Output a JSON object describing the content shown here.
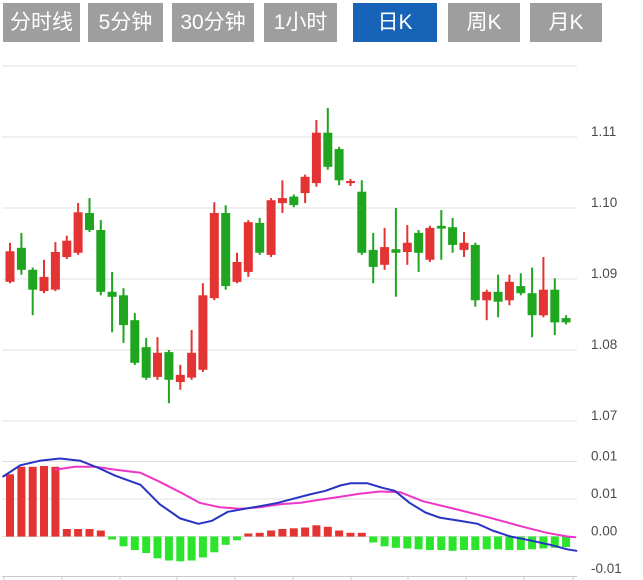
{
  "toolbar": {
    "tabs": [
      {
        "label": "分时线",
        "active": false
      },
      {
        "label": "5分钟",
        "active": false
      },
      {
        "label": "30分钟",
        "active": false
      },
      {
        "label": "1小时",
        "active": false
      },
      {
        "label": "日K",
        "active": true
      },
      {
        "label": "周K",
        "active": false
      },
      {
        "label": "月K",
        "active": false
      }
    ]
  },
  "colors": {
    "tab_inactive_bg": "#9e9e9e",
    "tab_active_bg": "#1763b8",
    "tab_text": "#ffffff",
    "up_candle": "#e43333",
    "down_candle": "#1fa51f",
    "hist_positive": "#e43333",
    "hist_negative": "#2be42b",
    "dif_line": "#2733c4",
    "dea_line": "#ee35c6",
    "gridline": "#e0e0e0",
    "axis_line": "#c8c8c8",
    "axis_text": "#4a4a4a",
    "background": "#ffffff"
  },
  "chart_data": {
    "type": "candlestick+macd",
    "convention": "red = close above open (up), green = close below open (down)",
    "price_panel": {
      "axis_tick_labels": [
        "1.11",
        "1.10",
        "1.09",
        "1.08",
        "1.07"
      ],
      "axis_tick_prices": [
        1.11,
        1.1,
        1.09,
        1.08,
        1.07
      ],
      "gridline_prices": [
        1.12,
        1.11,
        1.1,
        1.09,
        1.08,
        1.07
      ],
      "ylim": [
        1.068,
        1.125
      ],
      "grid": true,
      "legend": "none",
      "candles_ohlc": [
        [
          1.0896,
          1.0951,
          1.0894,
          1.0939
        ],
        [
          1.0944,
          1.0965,
          1.0906,
          1.0913
        ],
        [
          1.0913,
          1.0916,
          1.0849,
          1.0885
        ],
        [
          1.0883,
          1.0927,
          1.088,
          1.0903
        ],
        [
          1.0885,
          1.0952,
          1.0883,
          1.0938
        ],
        [
          1.0931,
          1.0961,
          1.0928,
          1.0954
        ],
        [
          1.0937,
          1.1007,
          1.0934,
          1.0994
        ],
        [
          1.0993,
          1.1014,
          1.0966,
          1.0969
        ],
        [
          1.0969,
          1.0983,
          1.0877,
          1.0882
        ],
        [
          1.0882,
          1.091,
          1.0825,
          1.0875
        ],
        [
          1.0877,
          1.0887,
          1.081,
          1.0835
        ],
        [
          1.0842,
          1.0852,
          1.0779,
          1.0782
        ],
        [
          1.0804,
          1.0817,
          1.0758,
          1.0761
        ],
        [
          1.0762,
          1.0818,
          1.0758,
          1.0796
        ],
        [
          1.0797,
          1.08,
          1.0725,
          1.0758
        ],
        [
          1.0755,
          1.0779,
          1.0744,
          1.0765
        ],
        [
          1.0761,
          1.0828,
          1.0758,
          1.0796
        ],
        [
          1.0772,
          1.0894,
          1.0769,
          1.0877
        ],
        [
          1.0873,
          1.1008,
          1.087,
          1.0993
        ],
        [
          1.0993,
          1.1004,
          1.0885,
          1.089
        ],
        [
          1.0896,
          1.0937,
          1.0894,
          1.0924
        ],
        [
          1.091,
          1.0983,
          1.0903,
          1.098
        ],
        [
          1.0979,
          1.0986,
          1.0934,
          1.0937
        ],
        [
          1.0934,
          1.1014,
          1.0931,
          1.1011
        ],
        [
          1.1007,
          1.1039,
          1.0993,
          1.1014
        ],
        [
          1.1016,
          1.1019,
          1.1001,
          1.1004
        ],
        [
          1.1021,
          1.1047,
          1.1007,
          1.1044
        ],
        [
          1.1035,
          1.1124,
          1.103,
          1.1106
        ],
        [
          1.1106,
          1.1141,
          1.1054,
          1.1058
        ],
        [
          1.1083,
          1.1086,
          1.1032,
          1.1039
        ],
        [
          1.1035,
          1.1041,
          1.1031,
          1.1038
        ],
        [
          1.1023,
          1.1039,
          1.0934,
          1.0937
        ],
        [
          1.0941,
          1.0965,
          1.0894,
          1.0917
        ],
        [
          1.092,
          1.0972,
          1.0913,
          1.0945
        ],
        [
          1.0942,
          1.1,
          1.0875,
          1.0937
        ],
        [
          1.0938,
          1.0976,
          1.092,
          1.0951
        ],
        [
          1.0965,
          1.0969,
          1.091,
          1.0937
        ],
        [
          1.0927,
          1.0975,
          1.0924,
          1.0972
        ],
        [
          1.0975,
          1.0997,
          1.0927,
          1.0971
        ],
        [
          1.0973,
          1.0986,
          1.0937,
          1.0948
        ],
        [
          1.0941,
          1.0966,
          1.0931,
          1.0951
        ],
        [
          1.0948,
          1.0951,
          1.0861,
          1.087
        ],
        [
          1.087,
          1.0885,
          1.0842,
          1.0882
        ],
        [
          1.0882,
          1.0906,
          1.0846,
          1.0868
        ],
        [
          1.087,
          1.0906,
          1.0863,
          1.0896
        ],
        [
          1.089,
          1.0908,
          1.0877,
          1.088
        ],
        [
          1.088,
          1.0916,
          1.0818,
          1.0849
        ],
        [
          1.0849,
          1.0931,
          1.0846,
          1.0885
        ],
        [
          1.0885,
          1.0901,
          1.0821,
          1.0839
        ],
        [
          1.0845,
          1.0849,
          1.0836,
          1.0839
        ]
      ]
    },
    "macd_panel": {
      "axis_tick_labels": [
        "0.01",
        "0.01",
        "0.00",
        "-0.01"
      ],
      "gridline_values": [
        0.01,
        0.005,
        0.0,
        -0.005
      ],
      "grid": true,
      "histogram": [
        0.0083,
        0.0093,
        0.0093,
        0.0094,
        0.0093,
        0.001,
        0.001,
        0.001,
        0.0008,
        -0.0004,
        -0.0013,
        -0.0018,
        -0.0022,
        -0.0029,
        -0.0032,
        -0.0033,
        -0.0032,
        -0.0028,
        -0.0021,
        -0.0011,
        -0.0005,
        0.0004,
        0.0005,
        0.0008,
        0.001,
        0.0011,
        0.0012,
        0.0015,
        0.0013,
        0.0008,
        0.0005,
        0.0005,
        -0.0008,
        -0.0013,
        -0.0015,
        -0.0016,
        -0.0017,
        -0.0018,
        -0.0018,
        -0.0019,
        -0.0018,
        -0.0018,
        -0.0017,
        -0.0017,
        -0.0018,
        -0.0018,
        -0.0017,
        -0.0016,
        -0.0015,
        -0.0014
      ],
      "dif_line": [
        [
          -0.6,
          0.008
        ],
        [
          0.9,
          0.0095
        ],
        [
          2.6,
          0.0101
        ],
        [
          4.4,
          0.0104
        ],
        [
          6.2,
          0.0101
        ],
        [
          7.7,
          0.0092
        ],
        [
          9.3,
          0.0081
        ],
        [
          11.5,
          0.0069
        ],
        [
          13.2,
          0.0043
        ],
        [
          15.0,
          0.0024
        ],
        [
          16.6,
          0.0017
        ],
        [
          17.8,
          0.0021
        ],
        [
          19.2,
          0.0033
        ],
        [
          20.7,
          0.0037
        ],
        [
          22.2,
          0.0041
        ],
        [
          23.6,
          0.0045
        ],
        [
          25.1,
          0.0051
        ],
        [
          26.4,
          0.0056
        ],
        [
          27.8,
          0.0061
        ],
        [
          29.1,
          0.0068
        ],
        [
          30.0,
          0.0071
        ],
        [
          31.5,
          0.0071
        ],
        [
          32.8,
          0.0065
        ],
        [
          33.9,
          0.0061
        ],
        [
          35.2,
          0.0045
        ],
        [
          36.6,
          0.0032
        ],
        [
          37.9,
          0.0025
        ],
        [
          39.6,
          0.0021
        ],
        [
          41.2,
          0.0017
        ],
        [
          42.5,
          0.0008
        ],
        [
          44.1,
          0.0
        ],
        [
          45.8,
          -0.0005
        ],
        [
          47.6,
          -0.0011
        ],
        [
          49.1,
          -0.0017
        ],
        [
          49.9,
          -0.0019
        ]
      ],
      "dea_line": [
        [
          4.0,
          0.0089
        ],
        [
          5.7,
          0.0093
        ],
        [
          7.5,
          0.0093
        ],
        [
          9.3,
          0.0089
        ],
        [
          11.5,
          0.0085
        ],
        [
          13.2,
          0.0073
        ],
        [
          15.0,
          0.0059
        ],
        [
          16.7,
          0.0045
        ],
        [
          18.5,
          0.0039
        ],
        [
          20.3,
          0.0037
        ],
        [
          22.0,
          0.0039
        ],
        [
          23.8,
          0.0043
        ],
        [
          25.6,
          0.0045
        ],
        [
          27.3,
          0.0049
        ],
        [
          29.1,
          0.0053
        ],
        [
          30.8,
          0.0057
        ],
        [
          32.6,
          0.006
        ],
        [
          34.4,
          0.0059
        ],
        [
          36.4,
          0.0047
        ],
        [
          39.4,
          0.0036
        ],
        [
          42.3,
          0.0025
        ],
        [
          45.2,
          0.0013
        ],
        [
          47.3,
          0.0005
        ],
        [
          49.1,
          0.0
        ],
        [
          49.8,
          -0.0001
        ]
      ]
    }
  }
}
